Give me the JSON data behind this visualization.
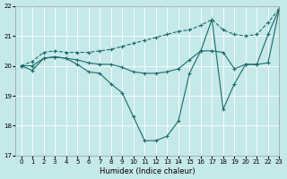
{
  "xlabel": "Humidex (Indice chaleur)",
  "bg_color": "#c5e8e8",
  "line_color": "#1a6b6b",
  "x": [
    0,
    1,
    2,
    3,
    4,
    5,
    6,
    7,
    8,
    9,
    10,
    11,
    12,
    13,
    14,
    15,
    16,
    17,
    18,
    19,
    20,
    21,
    22,
    23
  ],
  "line1": [
    20.0,
    19.85,
    20.25,
    20.3,
    20.25,
    20.05,
    19.8,
    19.75,
    19.4,
    19.1,
    18.3,
    17.5,
    17.5,
    17.65,
    18.15,
    19.75,
    20.5,
    21.55,
    18.55,
    19.4,
    20.05,
    20.05,
    21.05,
    21.9
  ],
  "line2": [
    20.0,
    20.0,
    20.25,
    20.3,
    20.25,
    20.2,
    20.1,
    20.05,
    20.05,
    19.95,
    19.8,
    19.75,
    19.75,
    19.8,
    19.9,
    20.2,
    20.5,
    20.5,
    20.45,
    19.9,
    20.05,
    20.05,
    20.1,
    21.9
  ],
  "line3": [
    20.0,
    20.15,
    20.45,
    20.5,
    20.45,
    20.45,
    20.45,
    20.5,
    20.55,
    20.65,
    20.75,
    20.85,
    20.95,
    21.05,
    21.15,
    21.2,
    21.35,
    21.55,
    21.2,
    21.05,
    21.0,
    21.05,
    21.45,
    21.9
  ],
  "ylim": [
    17,
    22
  ],
  "yticks": [
    17,
    18,
    19,
    20,
    21,
    22
  ],
  "xlim": [
    -0.5,
    23
  ],
  "xticks": [
    0,
    1,
    2,
    3,
    4,
    5,
    6,
    7,
    8,
    9,
    10,
    11,
    12,
    13,
    14,
    15,
    16,
    17,
    18,
    19,
    20,
    21,
    22,
    23
  ],
  "grid_color": "#ffffff",
  "grid_lw": 0.6,
  "marker": "+",
  "marker_size": 3,
  "line_width": 0.8,
  "tick_fontsize": 5,
  "xlabel_fontsize": 6
}
